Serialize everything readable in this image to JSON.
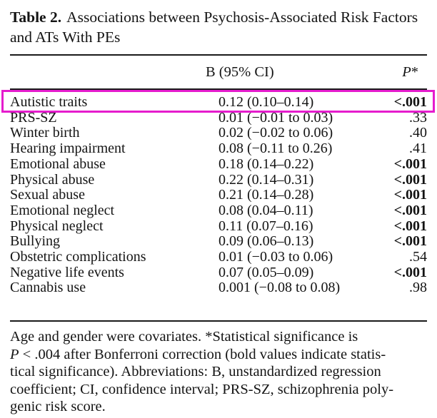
{
  "title": {
    "label": "Table 2.",
    "line1": "Associations between Psychosis-Associated Risk Factors",
    "line2": "and ATs With PEs"
  },
  "table": {
    "header": {
      "factor": "",
      "b_ci": "B (95% CI)",
      "p_label": "P",
      "p_star": "*"
    },
    "rows": [
      {
        "factor": "Autistic traits",
        "b_ci": "0.12 (0.10–0.14)",
        "p": "<.001",
        "significant": true,
        "highlighted": true
      },
      {
        "factor": "PRS-SZ",
        "b_ci": "0.01 (−0.01 to 0.03)",
        "p": ".33",
        "significant": false,
        "highlighted": false
      },
      {
        "factor": "Winter birth",
        "b_ci": "0.02 (−0.02 to 0.06)",
        "p": ".40",
        "significant": false,
        "highlighted": false
      },
      {
        "factor": "Hearing impairment",
        "b_ci": "0.08 (−0.11 to 0.26)",
        "p": ".41",
        "significant": false,
        "highlighted": false
      },
      {
        "factor": "Emotional abuse",
        "b_ci": "0.18 (0.14–0.22)",
        "p": "<.001",
        "significant": true,
        "highlighted": false
      },
      {
        "factor": "Physical abuse",
        "b_ci": "0.22 (0.14–0.31)",
        "p": "<.001",
        "significant": true,
        "highlighted": false
      },
      {
        "factor": "Sexual abuse",
        "b_ci": "0.21 (0.14–0.28)",
        "p": "<.001",
        "significant": true,
        "highlighted": false
      },
      {
        "factor": "Emotional neglect",
        "b_ci": "0.08 (0.04–0.11)",
        "p": "<.001",
        "significant": true,
        "highlighted": false
      },
      {
        "factor": "Physical neglect",
        "b_ci": "0.11 (0.07–0.16)",
        "p": "<.001",
        "significant": true,
        "highlighted": false
      },
      {
        "factor": "Bullying",
        "b_ci": "0.09 (0.06–0.13)",
        "p": "<.001",
        "significant": true,
        "highlighted": false
      },
      {
        "factor": "Obstetric complications",
        "b_ci": "0.01 (−0.03 to 0.06)",
        "p": ".54",
        "significant": false,
        "highlighted": false
      },
      {
        "factor": "Negative life events",
        "b_ci": "0.07 (0.05–0.09)",
        "p": "<.001",
        "significant": true,
        "highlighted": false
      },
      {
        "factor": "Cannabis use",
        "b_ci": "0.001 (−0.08 to 0.08)",
        "p": ".98",
        "significant": false,
        "highlighted": false
      }
    ]
  },
  "footnote": {
    "p_italic": "P",
    "lines": [
      "Age and gender were covariates. *Statistical significance is",
      " < .004 after Bonferroni correction (bold values indicate statis-",
      "tical significance). Abbreviations: B, unstandardized regression",
      "coefficient; CI, confidence interval; PRS-SZ, schizophrenia poly-",
      "genic risk score."
    ]
  },
  "colors": {
    "highlight_box": "#e51ccd",
    "text": "#141414",
    "rule": "#1a1a1a"
  }
}
